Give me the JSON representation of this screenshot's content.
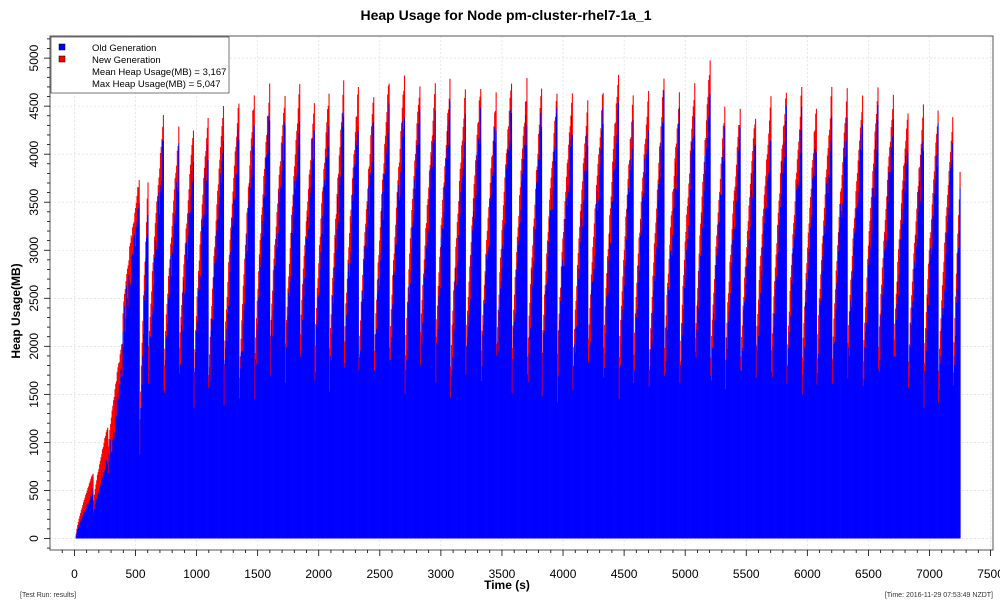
{
  "chart_data": {
    "type": "bar",
    "title": "Heap Usage for Node pm-cluster-rhel7-1a_1",
    "xlabel": "Time (s)",
    "ylabel": "Heap Usage(MB)",
    "xlim": [
      -200,
      7520
    ],
    "ylim": [
      -120,
      5230
    ],
    "x_ticks": [
      0,
      500,
      1000,
      1500,
      2000,
      2500,
      3000,
      3500,
      4000,
      4500,
      5000,
      5500,
      6000,
      6500,
      7000,
      7500
    ],
    "y_ticks": [
      0,
      500,
      1000,
      1500,
      2000,
      2500,
      3000,
      3500,
      4000,
      4500,
      5000
    ],
    "grid": true,
    "legend_position": "top-left",
    "x_range_data": [
      10,
      7250
    ],
    "series": [
      {
        "name": "Old Generation",
        "color": "#0000ff"
      },
      {
        "name": "New Generation",
        "color": "#ff0000"
      }
    ],
    "legend_extra": [
      "Mean Heap Usage(MB) = 3,167",
      "Max Heap Usage(MB) = 5,047"
    ],
    "cycles": [
      {
        "t": 10,
        "min": 50,
        "max": 700
      },
      {
        "t": 150,
        "min": 350,
        "max": 1200
      },
      {
        "t": 270,
        "min": 900,
        "max": 2100
      },
      {
        "t": 390,
        "min": 2300,
        "max": 3800
      },
      {
        "t": 530,
        "min": 1100,
        "max": 3800
      },
      {
        "t": 600,
        "min": 1850,
        "max": 4500
      },
      {
        "t": 725,
        "min": 1650,
        "max": 4300
      },
      {
        "t": 850,
        "min": 1750,
        "max": 4450
      },
      {
        "t": 975,
        "min": 1700,
        "max": 4600
      },
      {
        "t": 1095,
        "min": 1650,
        "max": 4700
      },
      {
        "t": 1220,
        "min": 1750,
        "max": 4700
      },
      {
        "t": 1345,
        "min": 1550,
        "max": 4750
      },
      {
        "t": 1470,
        "min": 1750,
        "max": 4780
      },
      {
        "t": 1595,
        "min": 1950,
        "max": 4700
      },
      {
        "t": 1720,
        "min": 1800,
        "max": 4800
      },
      {
        "t": 1840,
        "min": 1950,
        "max": 4600
      },
      {
        "t": 1960,
        "min": 1800,
        "max": 4750
      },
      {
        "t": 2080,
        "min": 1700,
        "max": 4800
      },
      {
        "t": 2200,
        "min": 1800,
        "max": 4850
      },
      {
        "t": 2325,
        "min": 1850,
        "max": 4750
      },
      {
        "t": 2450,
        "min": 1850,
        "max": 4920
      },
      {
        "t": 2575,
        "min": 1850,
        "max": 4900
      },
      {
        "t": 2700,
        "min": 1750,
        "max": 4850
      },
      {
        "t": 2825,
        "min": 1950,
        "max": 4750
      },
      {
        "t": 2950,
        "min": 1850,
        "max": 4900
      },
      {
        "t": 3075,
        "min": 1750,
        "max": 4800
      },
      {
        "t": 3200,
        "min": 1900,
        "max": 4850
      },
      {
        "t": 3325,
        "min": 1850,
        "max": 4700
      },
      {
        "t": 3450,
        "min": 1850,
        "max": 4900
      },
      {
        "t": 3575,
        "min": 1800,
        "max": 4800
      },
      {
        "t": 3700,
        "min": 1650,
        "max": 4850
      },
      {
        "t": 3825,
        "min": 1900,
        "max": 4800
      },
      {
        "t": 3950,
        "min": 1850,
        "max": 4800
      },
      {
        "t": 4075,
        "min": 1650,
        "max": 4700
      },
      {
        "t": 4200,
        "min": 1900,
        "max": 4750
      },
      {
        "t": 4325,
        "min": 1800,
        "max": 4950
      },
      {
        "t": 4450,
        "min": 1650,
        "max": 4750
      },
      {
        "t": 4575,
        "min": 1900,
        "max": 4800
      },
      {
        "t": 4700,
        "min": 1650,
        "max": 4950
      },
      {
        "t": 4825,
        "min": 1850,
        "max": 4700
      },
      {
        "t": 4950,
        "min": 1700,
        "max": 4800
      },
      {
        "t": 5075,
        "min": 1850,
        "max": 5047
      },
      {
        "t": 5200,
        "min": 1650,
        "max": 4650
      },
      {
        "t": 5325,
        "min": 1850,
        "max": 4600
      },
      {
        "t": 5450,
        "min": 1800,
        "max": 4550
      },
      {
        "t": 5575,
        "min": 1900,
        "max": 4650
      },
      {
        "t": 5700,
        "min": 1800,
        "max": 4800
      },
      {
        "t": 5825,
        "min": 1600,
        "max": 4750
      },
      {
        "t": 5950,
        "min": 1650,
        "max": 4700
      },
      {
        "t": 6075,
        "min": 1850,
        "max": 4800
      },
      {
        "t": 6200,
        "min": 1800,
        "max": 4750
      },
      {
        "t": 6325,
        "min": 1900,
        "max": 4700
      },
      {
        "t": 6450,
        "min": 1700,
        "max": 4750
      },
      {
        "t": 6575,
        "min": 1800,
        "max": 4700
      },
      {
        "t": 6700,
        "min": 1850,
        "max": 4650
      },
      {
        "t": 6825,
        "min": 1800,
        "max": 4600
      },
      {
        "t": 6950,
        "min": 1750,
        "max": 4550
      },
      {
        "t": 7070,
        "min": 1650,
        "max": 4550
      },
      {
        "t": 7190,
        "min": 1600,
        "max": 3950
      }
    ]
  },
  "footer": {
    "left": "[Test Run: results]",
    "right": "[Time: 2016-11-29 07:53:49 NZDT]"
  }
}
